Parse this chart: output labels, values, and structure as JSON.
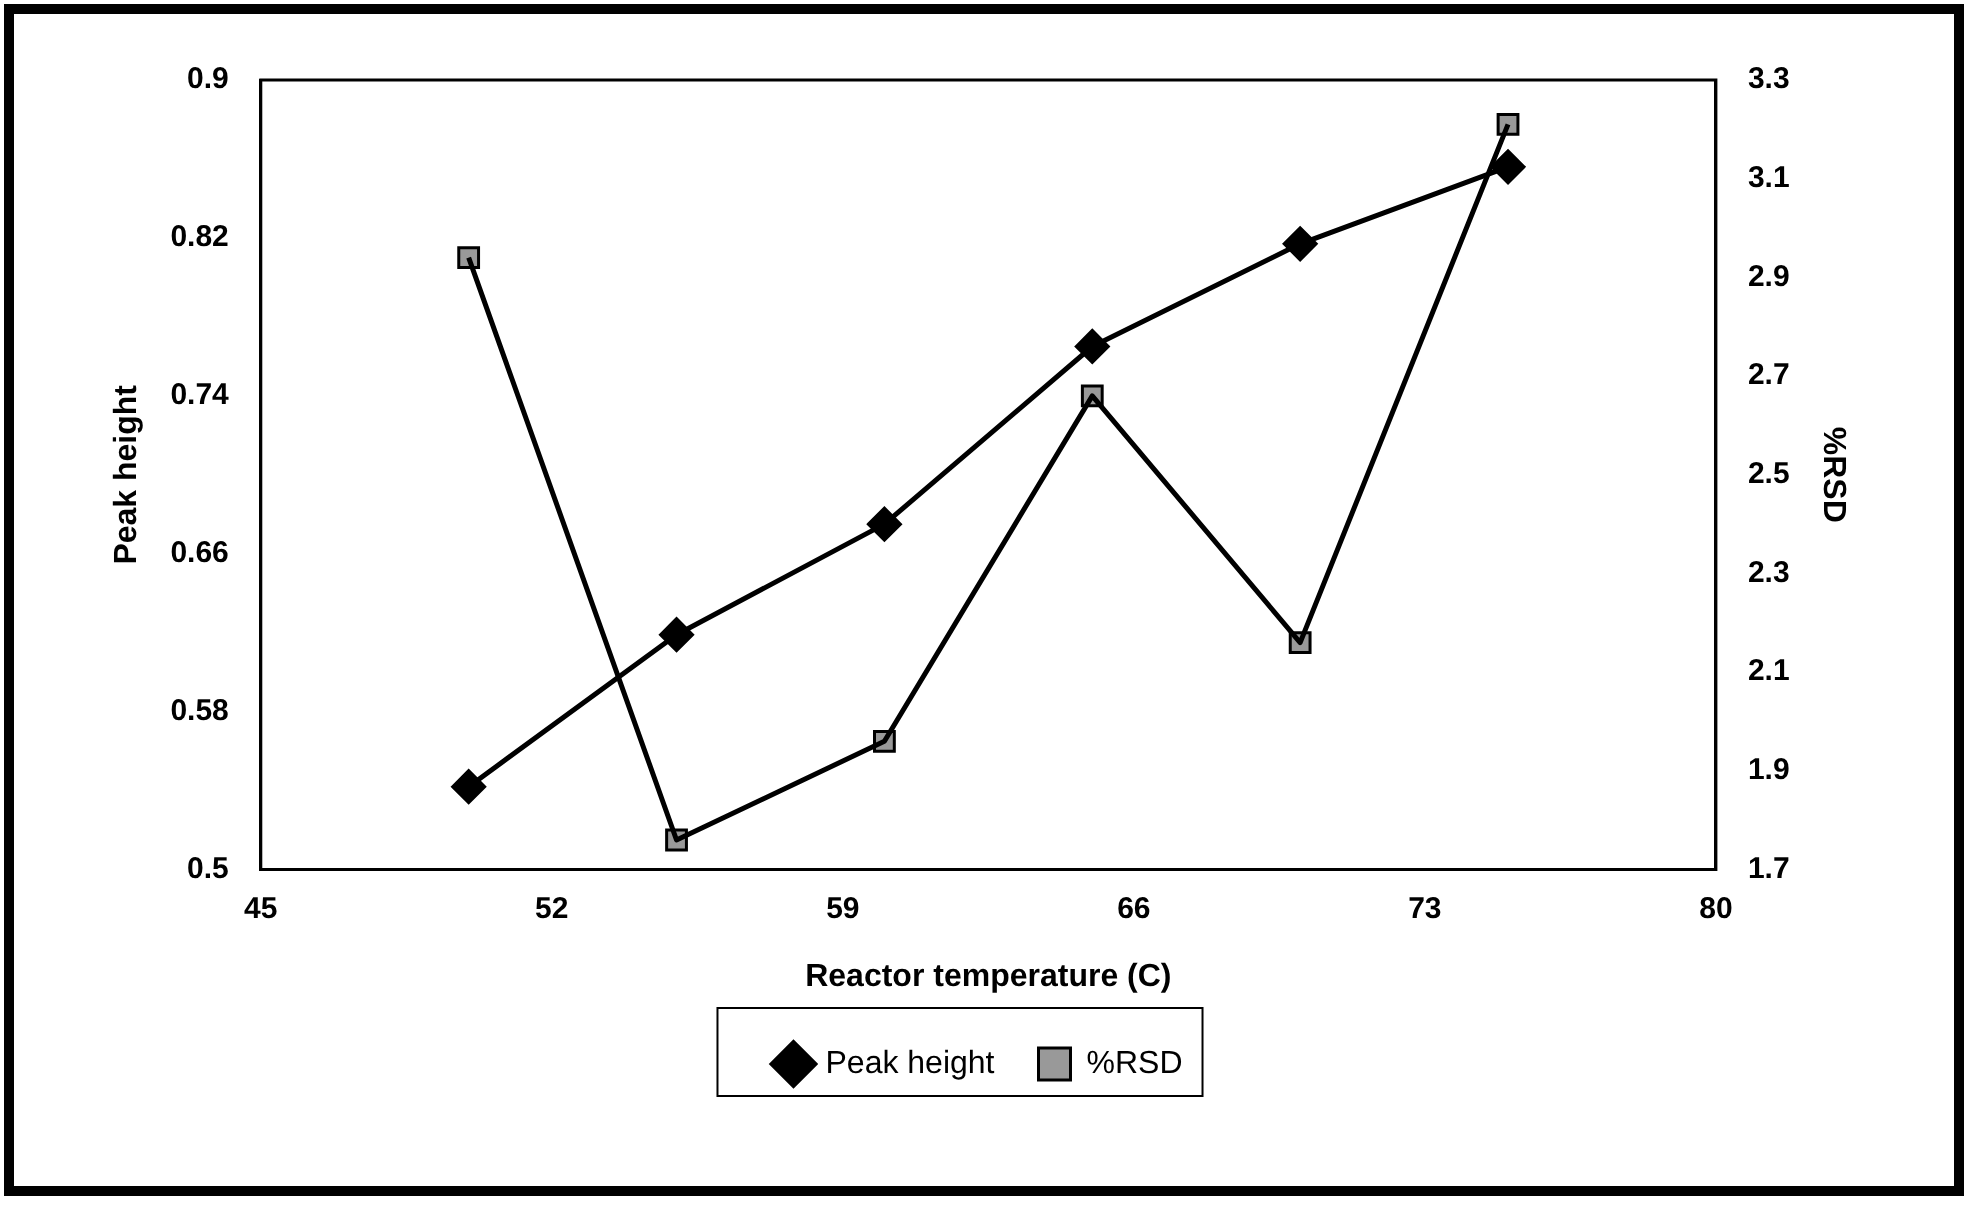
{
  "chart_data": {
    "type": "line",
    "xlabel": "Reactor temperature (C)",
    "ylabel": "Peak height",
    "y2label": "%RSD",
    "x": [
      50,
      55,
      60,
      65,
      70,
      75
    ],
    "series": [
      {
        "name": "Peak height",
        "color": "#000000",
        "marker": "diamond",
        "values": [
          0.542,
          0.619,
          0.675,
          0.765,
          0.817,
          0.856
        ]
      },
      {
        "name": "%RSD",
        "color": "#000000",
        "marker": "square",
        "axis": "y2",
        "values": [
          2.94,
          1.76,
          1.96,
          2.66,
          2.16,
          3.21
        ]
      }
    ],
    "xlim": [
      45,
      80
    ],
    "xticks": [
      45,
      52,
      59,
      66,
      73,
      80
    ],
    "ylim": [
      0.5,
      0.9
    ],
    "yticks": [
      0.5,
      0.58,
      0.66,
      0.74,
      0.82,
      0.9
    ],
    "y2lim": [
      1.7,
      3.3
    ],
    "y2ticks": [
      1.7,
      1.9,
      2.1,
      2.3,
      2.5,
      2.7,
      2.9,
      3.1,
      3.3
    ],
    "grid": false,
    "legend": "bottom",
    "line_style": "solid"
  }
}
